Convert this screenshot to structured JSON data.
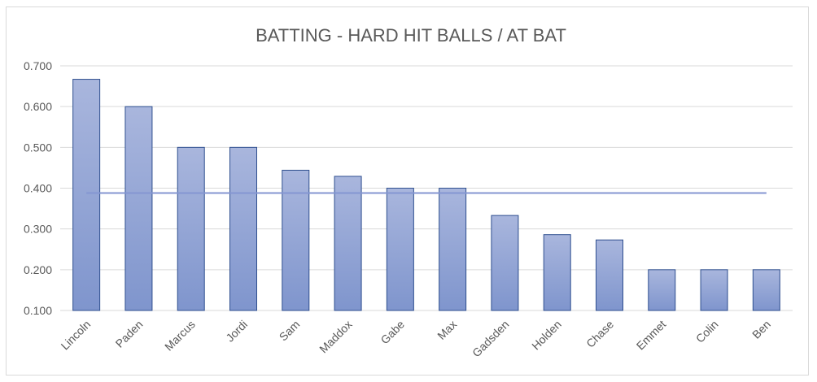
{
  "colors": {
    "bar_fill_top": "#a9b6dd",
    "bar_fill_bottom": "#7f95cd",
    "bar_stroke": "#2f4f8f",
    "average_line": "#8496d2",
    "gridline": "#d9d9d9",
    "axis_text": "#595959",
    "border": "#d9d9d9"
  },
  "chart_data": {
    "type": "bar",
    "title": "BATTING - HARD HIT BALLS / AT BAT",
    "xlabel": "",
    "ylabel": "",
    "categories": [
      "Lincoln",
      "Paden",
      "Marcus",
      "Jordi",
      "Sam",
      "Maddox",
      "Gabe",
      "Max",
      "Gadsden",
      "Holden",
      "Chase",
      "Emmet",
      "Colin",
      "Ben"
    ],
    "values": [
      0.667,
      0.6,
      0.5,
      0.5,
      0.444,
      0.429,
      0.4,
      0.4,
      0.333,
      0.286,
      0.273,
      0.2,
      0.2,
      0.2
    ],
    "average_line": 0.388,
    "ylim": [
      0.1,
      0.7
    ],
    "yticks": [
      "0.100",
      "0.200",
      "0.300",
      "0.400",
      "0.500",
      "0.600",
      "0.700"
    ],
    "grid": true,
    "legend": "none"
  }
}
